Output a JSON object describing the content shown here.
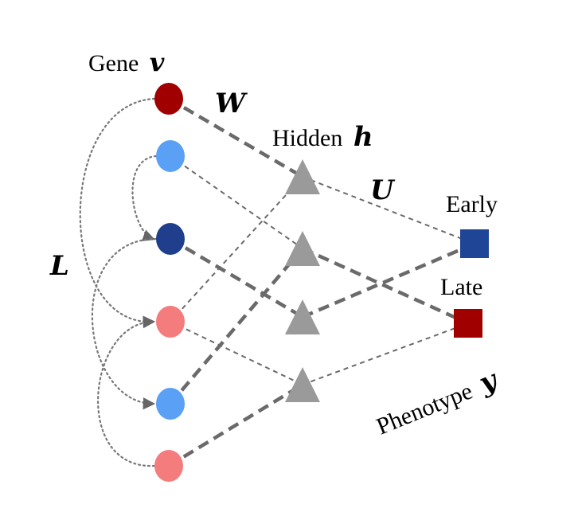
{
  "labels": {
    "gene_word": "Gene",
    "gene_symbol": "v",
    "hidden_word": "Hidden",
    "hidden_symbol": "h",
    "weight_w": "W",
    "weight_u": "U",
    "weight_l": "L",
    "early": "Early",
    "late": "Late",
    "phenotype_word": "Phenotype",
    "phenotype_symbol": "y"
  },
  "colors": {
    "dark_red": "#a00000",
    "light_blue": "#5aa0f5",
    "dark_blue": "#1f3f8c",
    "salmon": "#f47c7c",
    "gray_node": "#9a9a9a",
    "edge": "#6a6a6a",
    "early_square": "#1f4596",
    "late_square": "#a00000"
  },
  "nodes": {
    "genes": [
      {
        "id": "g1",
        "color": "dark_red"
      },
      {
        "id": "g2",
        "color": "light_blue"
      },
      {
        "id": "g3",
        "color": "dark_blue"
      },
      {
        "id": "g4",
        "color": "salmon"
      },
      {
        "id": "g5",
        "color": "light_blue"
      },
      {
        "id": "g6",
        "color": "salmon"
      }
    ],
    "hidden": [
      {
        "id": "h1"
      },
      {
        "id": "h2"
      },
      {
        "id": "h3"
      },
      {
        "id": "h4"
      }
    ],
    "outputs": [
      {
        "id": "early",
        "color": "early_square"
      },
      {
        "id": "late",
        "color": "late_square"
      }
    ]
  },
  "edges": [
    {
      "from": "g1",
      "to": "h1",
      "style": "thick"
    },
    {
      "from": "g2",
      "to": "h2",
      "style": "thin"
    },
    {
      "from": "g3",
      "to": "h3",
      "style": "thick"
    },
    {
      "from": "g4",
      "to": "h1",
      "style": "thin"
    },
    {
      "from": "g4",
      "to": "h4",
      "style": "thin"
    },
    {
      "from": "g5",
      "to": "h2",
      "style": "thick"
    },
    {
      "from": "g6",
      "to": "h4",
      "style": "thick"
    },
    {
      "from": "h1",
      "to": "early",
      "style": "thin"
    },
    {
      "from": "h2",
      "to": "late",
      "style": "thick"
    },
    {
      "from": "h3",
      "to": "early",
      "style": "thick"
    },
    {
      "from": "h4",
      "to": "late",
      "style": "thin"
    }
  ],
  "lateral": [
    {
      "from": "g1",
      "to": "g4"
    },
    {
      "from": "g2",
      "to": "g3"
    },
    {
      "from": "g3",
      "to": "g5"
    },
    {
      "from": "g6",
      "to": "g4"
    }
  ]
}
